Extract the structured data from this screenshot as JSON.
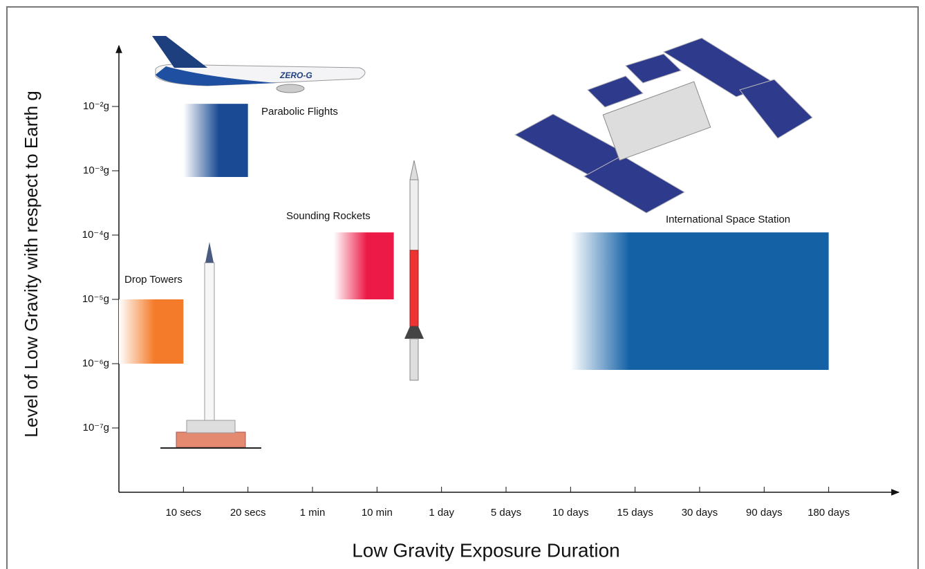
{
  "chart_data": {
    "type": "range",
    "xlabel": "Low Gravity Exposure Duration",
    "ylabel": "Level of Low Gravity with respect to Earth g",
    "log_y": true,
    "xlim": [
      0,
      12
    ],
    "xticks": [
      {
        "value": 1,
        "label": "10 secs"
      },
      {
        "value": 2,
        "label": "20 secs"
      },
      {
        "value": 3,
        "label": "1 min"
      },
      {
        "value": 4,
        "label": "10 min"
      },
      {
        "value": 5,
        "label": "1 day"
      },
      {
        "value": 6,
        "label": "5 days"
      },
      {
        "value": 7,
        "label": "10 days"
      },
      {
        "value": 8,
        "label": "15 days"
      },
      {
        "value": 9,
        "label": "30 days"
      },
      {
        "value": 10,
        "label": "90 days"
      },
      {
        "value": 11,
        "label": "180 days"
      }
    ],
    "ylim": [
      1e-08,
      0.1
    ],
    "yticks": [
      {
        "value": 0.01,
        "label": "10⁻²g"
      },
      {
        "value": 0.001,
        "label": "10⁻³g"
      },
      {
        "value": 0.0001,
        "label": "10⁻⁴g"
      },
      {
        "value": 1e-05,
        "label": "10⁻⁵g"
      },
      {
        "value": 1e-06,
        "label": "10⁻⁶g"
      },
      {
        "value": 1e-07,
        "label": "10⁻⁷g"
      }
    ],
    "bars": [
      {
        "name": "Drop Towers",
        "color": "#f47b2a",
        "x": [
          0,
          1
        ],
        "y": [
          1e-06,
          1e-05
        ]
      },
      {
        "name": "Parabolic Flights",
        "color": "#1a4a93",
        "x": [
          1,
          2
        ],
        "y": [
          0.0008,
          0.011
        ]
      },
      {
        "name": "Sounding Rockets",
        "color": "#ec1a47",
        "x": [
          3.33,
          4.26
        ],
        "y": [
          1e-05,
          0.00011
        ]
      },
      {
        "name": "International Space Station",
        "color": "#1461a6",
        "x": [
          7,
          11
        ],
        "y": [
          8e-07,
          0.00011
        ]
      }
    ]
  }
}
